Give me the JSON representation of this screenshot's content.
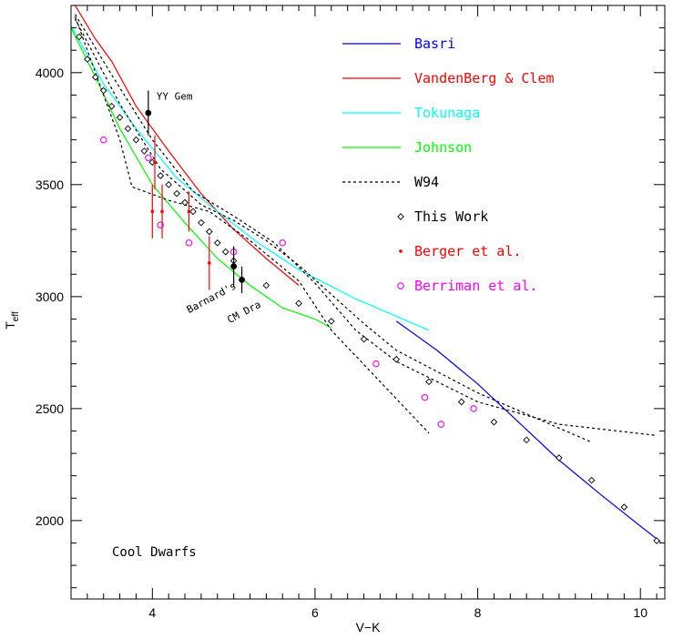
{
  "chart_data": {
    "type": "line",
    "xlabel": "V−K",
    "ylabel_main": "T",
    "ylabel_sub": "eff",
    "xlim": [
      3.0,
      10.3
    ],
    "ylim": [
      1650,
      4300
    ],
    "xticks": [
      4,
      6,
      8,
      10
    ],
    "yticks": [
      2000,
      2500,
      3000,
      3500,
      4000
    ],
    "xtick_labels": [
      "4",
      "6",
      "8",
      "10"
    ],
    "ytick_labels": [
      "2000",
      "2500",
      "3000",
      "3500",
      "4000"
    ],
    "panel_label": "Cool Dwarfs",
    "annotations": [
      {
        "text": "YY Gem",
        "x": 4.05,
        "y": 3880
      },
      {
        "text": "Barnard's",
        "x": 4.45,
        "y": 2925,
        "rotate": -28
      },
      {
        "text": "CM Dra",
        "x": 4.95,
        "y": 2880,
        "rotate": -28
      }
    ],
    "legend": [
      {
        "label": "Basri",
        "color": "#0000ff",
        "style": "solid"
      },
      {
        "label": "VandenBerg & Clem",
        "color": "#ff0000",
        "style": "solid"
      },
      {
        "label": "Tokunaga",
        "color": "#00ffff",
        "style": "solid"
      },
      {
        "label": "Johnson",
        "color": "#00ff00",
        "style": "solid"
      },
      {
        "label": "W94",
        "color": "#000000",
        "style": "dotted"
      },
      {
        "label": "This Work",
        "color": "#000000",
        "style": "diamond"
      },
      {
        "label": "Berger et al.",
        "color": "#ff0000",
        "style": "dot"
      },
      {
        "label": "Berriman et al.",
        "color": "#ff00ff",
        "style": "circle"
      }
    ],
    "series": [
      {
        "name": "Basri",
        "color": "#0000ff",
        "x": [
          7.0,
          7.5,
          8.0,
          8.5,
          9.0,
          9.5,
          10.0,
          10.25
        ],
        "y": [
          2890,
          2760,
          2610,
          2440,
          2270,
          2120,
          1975,
          1905
        ]
      },
      {
        "name": "VandenBerg & Clem",
        "color": "#ff0000",
        "x": [
          3.05,
          3.3,
          3.5,
          3.8,
          4.2,
          4.6,
          5.0,
          5.4,
          5.8
        ],
        "y": [
          4300,
          4150,
          4050,
          3850,
          3650,
          3460,
          3300,
          3170,
          3050
        ]
      },
      {
        "name": "Tokunaga",
        "color": "#00ffff",
        "x": [
          3.0,
          3.4,
          3.8,
          4.3,
          4.8,
          5.3,
          5.8,
          6.5,
          7.4
        ],
        "y": [
          4210,
          3950,
          3750,
          3530,
          3380,
          3240,
          3120,
          2990,
          2850
        ]
      },
      {
        "name": "Johnson",
        "color": "#00ff00",
        "x": [
          3.0,
          3.3,
          3.6,
          4.0,
          4.4,
          4.8,
          5.2,
          5.6,
          6.0,
          6.2
        ],
        "y": [
          4200,
          3980,
          3750,
          3500,
          3330,
          3170,
          3050,
          2950,
          2900,
          2860
        ]
      },
      {
        "name": "W94 (a)",
        "color": "#000000",
        "dash": "3,3",
        "x": [
          3.05,
          3.3,
          3.6,
          3.75,
          4.2,
          4.7,
          5.2,
          5.8,
          6.2,
          6.8,
          7.4
        ],
        "y": [
          4250,
          4000,
          3700,
          3490,
          3430,
          3380,
          3250,
          3070,
          2850,
          2620,
          2390
        ]
      },
      {
        "name": "W94 (b)",
        "color": "#000000",
        "dash": "3,3",
        "x": [
          3.05,
          3.5,
          4.0,
          4.5,
          5.0,
          5.5,
          6.0,
          6.5,
          7.0,
          8.0,
          9.0,
          10.2
        ],
        "y": [
          4260,
          3990,
          3700,
          3470,
          3360,
          3240,
          3060,
          2850,
          2710,
          2530,
          2430,
          2380
        ]
      },
      {
        "name": "W94 (c)",
        "color": "#000000",
        "dash": "3,3",
        "x": [
          3.05,
          3.6,
          4.1,
          4.6,
          5.0,
          5.4,
          5.8,
          6.2,
          6.6,
          7.0,
          8.0,
          9.4
        ],
        "y": [
          4240,
          3860,
          3570,
          3410,
          3340,
          3250,
          3140,
          3010,
          2880,
          2760,
          2570,
          2350
        ]
      }
    ],
    "this_work": {
      "x": [
        3.1,
        3.2,
        3.3,
        3.4,
        3.5,
        3.6,
        3.7,
        3.8,
        3.9,
        4.0,
        4.1,
        4.2,
        4.3,
        4.4,
        4.5,
        4.6,
        4.7,
        4.8,
        4.9,
        5.0,
        5.4,
        5.8,
        6.2,
        6.6,
        7.0,
        7.4,
        7.8,
        8.2,
        8.6,
        9.0,
        9.4,
        9.8,
        10.2
      ],
      "y": [
        4160,
        4060,
        3980,
        3920,
        3850,
        3800,
        3750,
        3700,
        3650,
        3600,
        3540,
        3500,
        3460,
        3420,
        3380,
        3330,
        3290,
        3240,
        3200,
        3160,
        3050,
        2970,
        2890,
        2810,
        2720,
        2620,
        2530,
        2440,
        2360,
        2280,
        2180,
        2060,
        1910
      ]
    },
    "berger": {
      "x": [
        4.0,
        4.03,
        4.12,
        4.45,
        4.7
      ],
      "y": [
        3380,
        3600,
        3380,
        3380,
        3150
      ],
      "err": [
        120,
        120,
        120,
        90,
        120
      ]
    },
    "berriman": {
      "x": [
        3.4,
        3.95,
        4.1,
        4.45,
        5.0,
        5.6,
        6.75,
        7.35,
        7.55,
        7.95
      ],
      "y": [
        3700,
        3620,
        3320,
        3240,
        3200,
        3240,
        2700,
        2550,
        2430,
        2500
      ]
    },
    "filled": {
      "x": [
        3.95,
        5.0,
        5.1
      ],
      "y": [
        3820,
        3135,
        3075
      ],
      "err": [
        100,
        90,
        60
      ]
    }
  }
}
